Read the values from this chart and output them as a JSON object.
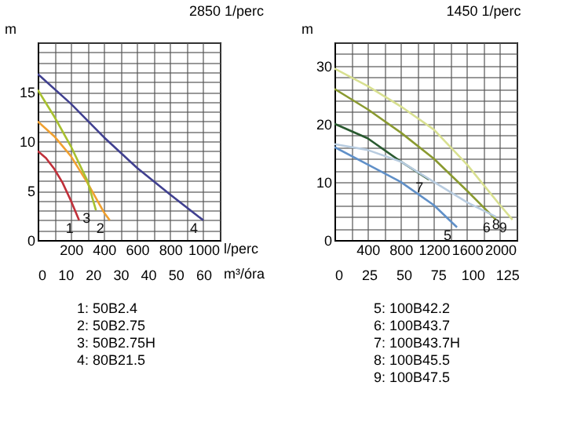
{
  "chart_data": [
    {
      "type": "line",
      "title": "2850 1/perc",
      "xlabel": "l/perc",
      "ylabel": "m",
      "x2label": "m³/óra",
      "grid": true,
      "xlim": [
        0,
        1100
      ],
      "ylim": [
        0,
        20
      ],
      "x2lim": [
        0,
        66
      ],
      "xticks": [
        {
          "value": 0,
          "label": null
        },
        {
          "value": 100,
          "label": null
        },
        200,
        {
          "value": 300,
          "label": null
        },
        400,
        {
          "value": 500,
          "label": null
        },
        600,
        {
          "value": 700,
          "label": null
        },
        800,
        {
          "value": 900,
          "label": null
        },
        1000,
        {
          "value": 1100,
          "label": null
        }
      ],
      "yticks": [
        0,
        {
          "value": 1,
          "label": null
        },
        {
          "value": 2,
          "label": null
        },
        {
          "value": 3,
          "label": null
        },
        {
          "value": 4,
          "label": null
        },
        5,
        {
          "value": 6,
          "label": null
        },
        {
          "value": 7,
          "label": null
        },
        {
          "value": 8,
          "label": null
        },
        {
          "value": 9,
          "label": null
        },
        10,
        {
          "value": 11,
          "label": null
        },
        {
          "value": 12,
          "label": null
        },
        {
          "value": 13,
          "label": null
        },
        {
          "value": 14,
          "label": null
        },
        15,
        {
          "value": 16,
          "label": null
        },
        {
          "value": 17,
          "label": null
        },
        {
          "value": 18,
          "label": null
        },
        {
          "value": 19,
          "label": null
        },
        {
          "value": 20,
          "label": null
        }
      ],
      "x2ticks": [
        0,
        10,
        20,
        30,
        40,
        50,
        60
      ],
      "series": [
        {
          "name": "1",
          "color": "#c0303a",
          "x": [
            0,
            50,
            100,
            150,
            200,
            250
          ],
          "values": [
            9,
            8.3,
            7.2,
            5.8,
            4,
            2
          ]
        },
        {
          "name": "2",
          "color": "#f0a030",
          "x": [
            0,
            100,
            200,
            300,
            400,
            435
          ],
          "values": [
            12,
            10.5,
            8.5,
            5.8,
            2.8,
            2
          ]
        },
        {
          "name": "3",
          "color": "#a8c030",
          "x": [
            0,
            100,
            200,
            300,
            352
          ],
          "values": [
            15.2,
            12.5,
            9.5,
            6,
            3
          ]
        },
        {
          "name": "4",
          "color": "#404090",
          "x": [
            0,
            200,
            400,
            600,
            800,
            1000
          ],
          "values": [
            16.8,
            13.8,
            10.4,
            7.3,
            4.6,
            2
          ]
        }
      ],
      "annotations": [
        "1: 50B2.4",
        "2: 50B2.75",
        "3: 50B2.75H",
        "4: 80B21.5"
      ]
    },
    {
      "type": "line",
      "title": "1450 1/perc",
      "ylabel": "m",
      "grid": true,
      "xlim": [
        0,
        2200
      ],
      "ylim": [
        0,
        34
      ],
      "x2lim": [
        0,
        132
      ],
      "xticks": [
        {
          "value": 0,
          "label": null
        },
        {
          "value": 200,
          "label": null
        },
        400,
        {
          "value": 600,
          "label": null
        },
        800,
        {
          "value": 1000,
          "label": null
        },
        1200,
        {
          "value": 1400,
          "label": null
        },
        1600,
        {
          "value": 1800,
          "label": null
        },
        2000,
        {
          "value": 2200,
          "label": null
        }
      ],
      "yticks": [
        0,
        {
          "value": 2,
          "label": null
        },
        {
          "value": 4,
          "label": null
        },
        {
          "value": 6,
          "label": null
        },
        {
          "value": 8,
          "label": null
        },
        10,
        {
          "value": 12,
          "label": null
        },
        {
          "value": 14,
          "label": null
        },
        {
          "value": 16,
          "label": null
        },
        {
          "value": 18,
          "label": null
        },
        20,
        {
          "value": 22,
          "label": null
        },
        {
          "value": 24,
          "label": null
        },
        {
          "value": 26,
          "label": null
        },
        {
          "value": 28,
          "label": null
        },
        30,
        {
          "value": 32,
          "label": null
        },
        {
          "value": 34,
          "label": null
        }
      ],
      "x2ticks": [
        0,
        25,
        50,
        75,
        100,
        125
      ],
      "series": [
        {
          "name": "5",
          "color": "#6090c8",
          "x": [
            0,
            400,
            800,
            1200,
            1480
          ],
          "values": [
            16,
            13,
            10,
            6,
            2.2
          ]
        },
        {
          "name": "6",
          "color": "#8a9a30",
          "x": [
            0,
            400,
            800,
            1200,
            1600,
            1950
          ],
          "values": [
            26,
            22.5,
            18.5,
            14,
            8.5,
            3.5
          ]
        },
        {
          "name": "7",
          "color": "#2a5a30",
          "x": [
            0,
            400,
            800,
            1140
          ],
          "values": [
            20,
            17.5,
            13.5,
            10.4
          ]
        },
        {
          "name": "8",
          "color": "#b8cce0",
          "x": [
            0,
            400,
            800,
            1200,
            1600,
            1950
          ],
          "values": [
            16.5,
            15.5,
            13.5,
            10,
            6.5,
            4
          ]
        },
        {
          "name": "9",
          "color": "#d8e090",
          "x": [
            0,
            400,
            800,
            1200,
            1600,
            2000,
            2150
          ],
          "values": [
            29.5,
            26.5,
            23,
            19,
            13,
            6,
            3.5
          ]
        }
      ],
      "annotations": [
        "5: 100B42.2",
        "6: 100B43.7",
        "7: 100B43.7H",
        "8: 100B45.5",
        "9: 100B47.5"
      ]
    }
  ]
}
